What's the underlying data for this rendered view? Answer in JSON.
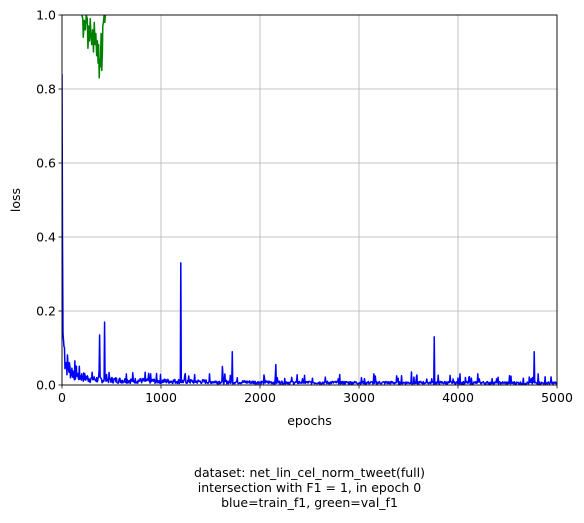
{
  "chart_data": {
    "type": "line",
    "title": "",
    "xlabel": "epochs",
    "ylabel": "loss",
    "xlim": [
      0,
      5000
    ],
    "ylim": [
      0,
      1
    ],
    "x_ticks": [
      "0",
      "1000",
      "2000",
      "3000",
      "4000",
      "5000"
    ],
    "y_ticks": [
      "0.0",
      "0.2",
      "0.4",
      "0.6",
      "0.8",
      "1.0"
    ],
    "grid": true,
    "series": [
      {
        "color": "#0000ff",
        "baseline": [
          [
            0,
            0.84
          ],
          [
            5,
            0.4
          ],
          [
            10,
            0.14
          ],
          [
            20,
            0.1
          ],
          [
            40,
            0.06
          ],
          [
            80,
            0.04
          ],
          [
            150,
            0.025
          ],
          [
            300,
            0.015
          ],
          [
            600,
            0.012
          ],
          [
            1000,
            0.01
          ],
          [
            2000,
            0.007
          ],
          [
            3000,
            0.006
          ],
          [
            4000,
            0.006
          ],
          [
            5000,
            0.005
          ]
        ],
        "spikes": [
          [
            380,
            0.135
          ],
          [
            430,
            0.17
          ],
          [
            650,
            0.03
          ],
          [
            1200,
            0.33
          ],
          [
            1620,
            0.05
          ],
          [
            1720,
            0.09
          ],
          [
            2160,
            0.055
          ],
          [
            3150,
            0.03
          ],
          [
            3530,
            0.035
          ],
          [
            3760,
            0.13
          ],
          [
            4020,
            0.03
          ],
          [
            4200,
            0.03
          ],
          [
            4520,
            0.025
          ],
          [
            4770,
            0.09
          ],
          [
            4810,
            0.03
          ]
        ]
      },
      {
        "color": "#008000",
        "points": [
          [
            200,
            1.0
          ],
          [
            210,
            0.99
          ],
          [
            215,
            0.94
          ],
          [
            225,
            0.985
          ],
          [
            235,
            0.96
          ],
          [
            245,
            1.0
          ],
          [
            255,
            0.99
          ],
          [
            262,
            0.91
          ],
          [
            270,
            0.97
          ],
          [
            278,
            0.93
          ],
          [
            285,
            0.99
          ],
          [
            292,
            0.95
          ],
          [
            300,
            0.92
          ],
          [
            310,
            0.96
          ],
          [
            318,
            0.9
          ],
          [
            326,
            0.98
          ],
          [
            334,
            0.92
          ],
          [
            342,
            0.95
          ],
          [
            350,
            0.89
          ],
          [
            358,
            0.93
          ],
          [
            364,
            0.87
          ],
          [
            370,
            0.92
          ],
          [
            376,
            0.83
          ],
          [
            382,
            0.88
          ],
          [
            388,
            0.86
          ],
          [
            395,
            0.95
          ],
          [
            402,
            0.85
          ],
          [
            408,
            0.9
          ],
          [
            412,
            0.97
          ],
          [
            418,
            0.98
          ],
          [
            425,
            1.0
          ],
          [
            432,
            0.98
          ],
          [
            438,
            1.0
          ]
        ]
      }
    ]
  },
  "caption": {
    "line1": "dataset: net_lin_cel_norm_tweet(full)",
    "line2": "intersection with F1 = 1, in epoch 0",
    "line3": "blue=train_f1, green=val_f1"
  }
}
